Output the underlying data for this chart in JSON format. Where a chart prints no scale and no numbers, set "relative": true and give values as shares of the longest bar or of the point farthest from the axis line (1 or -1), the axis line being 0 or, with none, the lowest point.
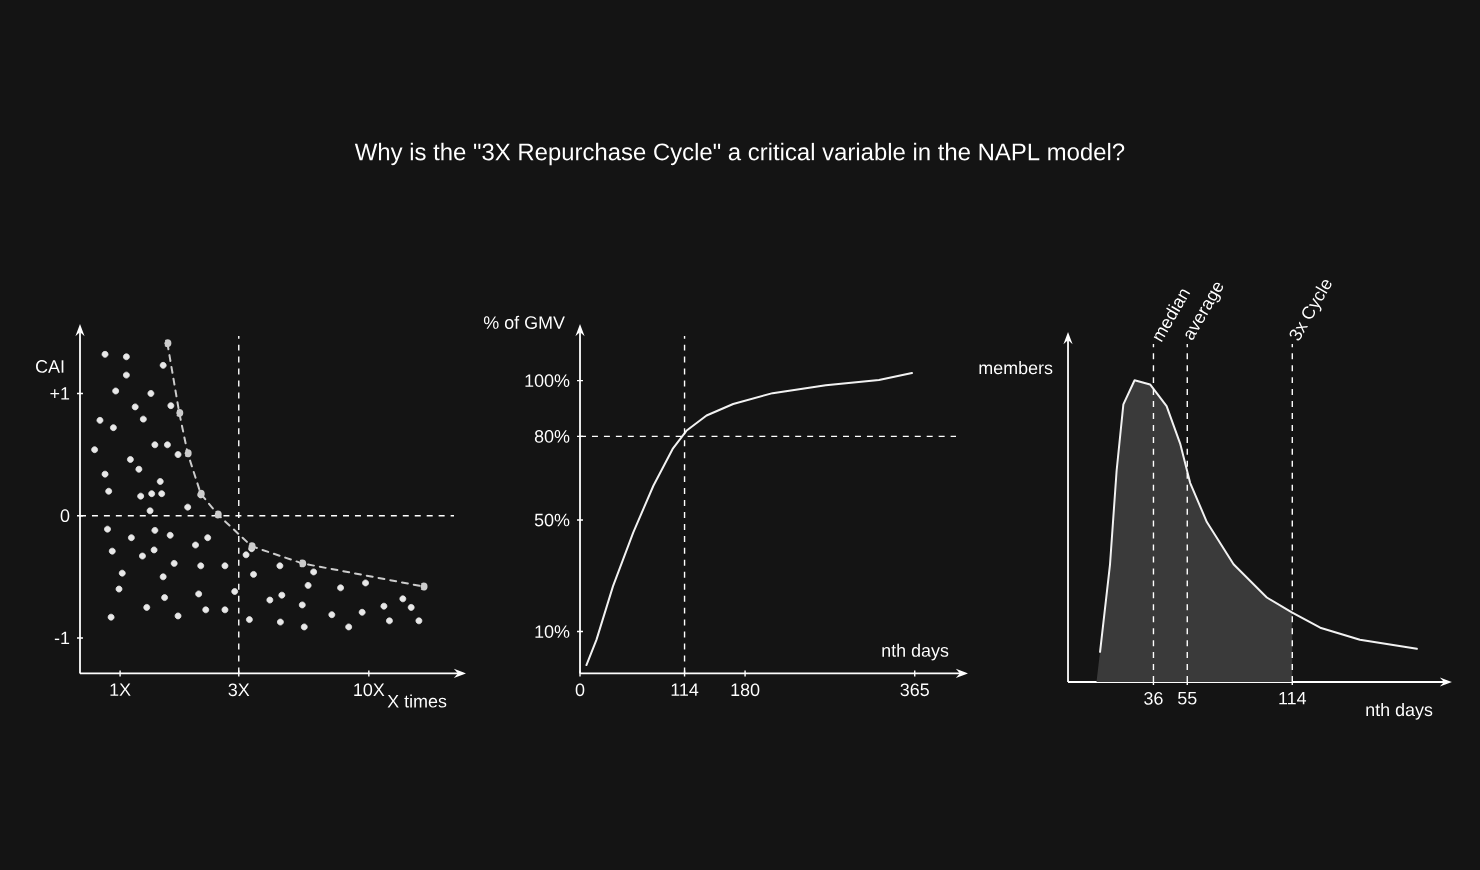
{
  "chart_data": [
    {
      "type": "scatter",
      "title": "Why is the \"3X Repurchase Cycle\" a critical variable in the NAPL model?",
      "xlabel": "X times",
      "ylabel": "CAI",
      "log": "x",
      "xlim": [
        0.69,
        22
      ],
      "ylim": [
        -1.29,
        1.47
      ],
      "xticks": [
        {
          "value": 1,
          "label": "1X"
        },
        {
          "value": 3,
          "label": "3X"
        },
        {
          "value": 10,
          "label": "10X"
        }
      ],
      "yticks": [
        {
          "value": 1,
          "label": "+1"
        },
        0,
        -1
      ],
      "marker": "circle",
      "series": [
        {
          "color": "#e8e8e8",
          "x": [
            0.87,
            1.06,
            1.49,
            1.06,
            0.96,
            1.33,
            1.6,
            1.15,
            0.83,
            0.94,
            1.24,
            0.79,
            1.1,
            1.38,
            1.55,
            1.71,
            0.87,
            1.19,
            1.45,
            0.9,
            1.21,
            1.34,
            1.47,
            2.11,
            1.87,
            1.32,
            0.89,
            1.38,
            1.11,
            1.59,
            0.93,
            1.23,
            1.37,
            2.01,
            2.25,
            3.38,
            3.21,
            1.65,
            2.11,
            2.64,
            1.49,
            1.02,
            0.99,
            3.44,
            4.39,
            6.0,
            7.7,
            9.7,
            5.7,
            2.89,
            2.07,
            4.47,
            4.0,
            1.51,
            1.28,
            2.21,
            2.64,
            5.4,
            9.4,
            11.5,
            13.7,
            14.8,
            0.92,
            1.71,
            3.31,
            4.41,
            5.5,
            7.1,
            8.3,
            12.1,
            15.9
          ],
          "values": [
            1.32,
            1.3,
            1.23,
            1.15,
            1.02,
            1.0,
            0.9,
            0.89,
            0.78,
            0.72,
            0.79,
            0.54,
            0.46,
            0.58,
            0.58,
            0.5,
            0.34,
            0.38,
            0.28,
            0.2,
            0.16,
            0.18,
            0.18,
            0.17,
            0.07,
            0.04,
            -0.11,
            -0.12,
            -0.18,
            -0.16,
            -0.29,
            -0.33,
            -0.28,
            -0.24,
            -0.18,
            -0.27,
            -0.32,
            -0.39,
            -0.41,
            -0.41,
            -0.5,
            -0.47,
            -0.6,
            -0.48,
            -0.41,
            -0.46,
            -0.59,
            -0.55,
            -0.57,
            -0.62,
            -0.64,
            -0.65,
            -0.69,
            -0.67,
            -0.75,
            -0.77,
            -0.77,
            -0.73,
            -0.79,
            -0.74,
            -0.68,
            -0.75,
            -0.83,
            -0.82,
            -0.85,
            -0.87,
            -0.91,
            -0.81,
            -0.91,
            -0.86,
            -0.86
          ]
        },
        {
          "type": "line",
          "line_style": "dashed",
          "color": "#cccccc",
          "x": [
            1.55,
            1.73,
            1.87,
            2.11,
            2.47,
            3.38,
            5.4,
            16.6
          ],
          "values": [
            1.41,
            0.84,
            0.51,
            0.18,
            0.01,
            -0.25,
            -0.39,
            -0.58
          ]
        }
      ],
      "ref_lines": [
        {
          "axis": "y",
          "value": 0,
          "line_style": "dashed"
        },
        {
          "axis": "x",
          "value": 3,
          "line_style": "dashed"
        }
      ]
    },
    {
      "type": "line",
      "xlabel": "nth days",
      "ylabel": "% of GMV",
      "xlim": [
        0,
        410
      ],
      "ylim": [
        -5,
        116
      ],
      "xticks": [
        0,
        114,
        180,
        365
      ],
      "yticks": [
        {
          "value": 10,
          "label": "10%"
        },
        {
          "value": 50,
          "label": "50%"
        },
        {
          "value": 80,
          "label": "80%"
        },
        {
          "value": 100,
          "label": "100%"
        }
      ],
      "series": [
        {
          "color": "#f2f2f2",
          "x": [
            7,
            18,
            36,
            58,
            80,
            101,
            116,
            138,
            167,
            210,
            268,
            326,
            362
          ],
          "values": [
            -2,
            7.1,
            26.3,
            45.5,
            62.3,
            75.5,
            82,
            87.5,
            91.6,
            95.5,
            98.3,
            100.2,
            102.7
          ]
        }
      ],
      "ref_lines": [
        {
          "axis": "x",
          "value": 114,
          "line_style": "dashed"
        },
        {
          "axis": "y",
          "value": 80,
          "line_style": "dashed"
        }
      ]
    },
    {
      "type": "area",
      "relative": true,
      "xlabel": "nth days",
      "ylabel": "members",
      "xlim": [
        -12,
        197
      ],
      "xticks": [
        36,
        55,
        114
      ],
      "series": [
        {
          "color": "#3a3a3a",
          "x": [
            4,
            6,
            11.6,
            15.3,
            19.1,
            25.4,
            34.1,
            43.4,
            51,
            56.6,
            66,
            81,
            99.7,
            114
          ],
          "values": [
            0,
            0.1,
            0.39,
            0.7,
            0.92,
            1,
            0.986,
            0.914,
            0.79,
            0.66,
            0.53,
            0.39,
            0.28,
            0.23
          ]
        },
        {
          "type": "line",
          "color": "#f2f2f2",
          "x": [
            6,
            11.6,
            15.3,
            19.1,
            25.4,
            34.1,
            43.4,
            51,
            56.6,
            66,
            81,
            99.7,
            114,
            129.7,
            152,
            184
          ],
          "values": [
            0.1,
            0.39,
            0.7,
            0.92,
            1,
            0.986,
            0.914,
            0.79,
            0.66,
            0.53,
            0.39,
            0.28,
            0.23,
            0.18,
            0.14,
            0.11
          ]
        }
      ],
      "ref_lines": [
        {
          "axis": "x",
          "value": 36,
          "label": "median",
          "line_style": "dashed"
        },
        {
          "axis": "x",
          "value": 55,
          "label": "average",
          "line_style": "dashed"
        },
        {
          "axis": "x",
          "value": 114,
          "label": "3x Cycle",
          "line_style": "dashed"
        }
      ]
    }
  ]
}
